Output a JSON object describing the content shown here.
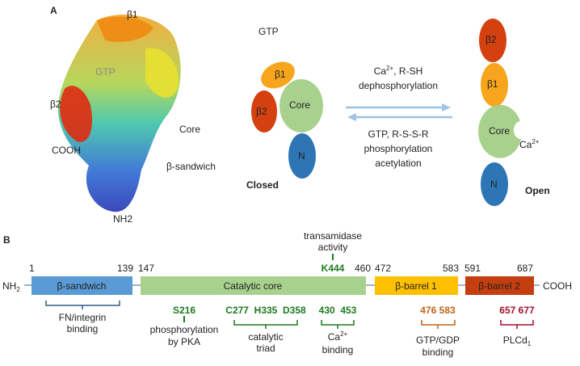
{
  "panel_a": {
    "label": "A",
    "structure_labels": {
      "beta1": "β1",
      "gtp": "GTP",
      "beta2": "β2",
      "core": "Core",
      "cooh": "COOH",
      "beta_sandwich": "β-sandwich",
      "nh2": "NH2"
    },
    "closed": {
      "gtp": "GTP",
      "beta1": "β1",
      "beta2": "β2",
      "core": "Core",
      "n": "N",
      "state": "Closed"
    },
    "open": {
      "beta2": "β2",
      "beta1": "β1",
      "core": "Core",
      "ca": "Ca",
      "ca_sup": "2+",
      "n": "N",
      "state": "Open"
    },
    "forward": {
      "line1_a": "Ca",
      "line1_sup": "2+",
      "line1_b": ", R-SH",
      "line2": "dephosphorylation"
    },
    "reverse": {
      "line1": "GTP, R-S-S-R",
      "line2": "phosphorylation",
      "line3": "acetylation"
    }
  },
  "panel_b": {
    "label": "B",
    "nterm": "NH",
    "nterm_sub": "2",
    "cterm": "COOH",
    "domains": [
      {
        "name": "β-sandwich",
        "start": "1",
        "end": "139",
        "color": "#5b9bd5"
      },
      {
        "name": "Catalytic core",
        "start": "147",
        "end": "460",
        "color": "#a9d18e"
      },
      {
        "name": "β-barrel 1",
        "start": "472",
        "end": "583",
        "color": "#ffc000"
      },
      {
        "name": "β-barrel 2",
        "start": "591",
        "end": "687",
        "color": "#c43e10"
      }
    ],
    "transamidase": {
      "line1": "transamidase",
      "line2": "activity",
      "residue": "K444"
    },
    "sites": {
      "fn": {
        "line1": "FN/integrin",
        "line2": "binding"
      },
      "s216": {
        "residue": "S216",
        "line1": "phosphorylation",
        "line2": "by PKA"
      },
      "triad": {
        "residues": "C277  H335  D358",
        "line1": "catalytic",
        "line2": "triad"
      },
      "ca": {
        "residues": "430  453",
        "line1_a": "Ca",
        "line1_sup": "2+",
        "line2": "binding"
      },
      "gtp": {
        "residues": "476 583",
        "line1": "GTP/GDP",
        "line2": "binding",
        "color": "#c0651a"
      },
      "plc": {
        "residues": "657 677",
        "line1": "PLCd",
        "line1_sub": "1",
        "color": "#a0102a"
      }
    }
  }
}
